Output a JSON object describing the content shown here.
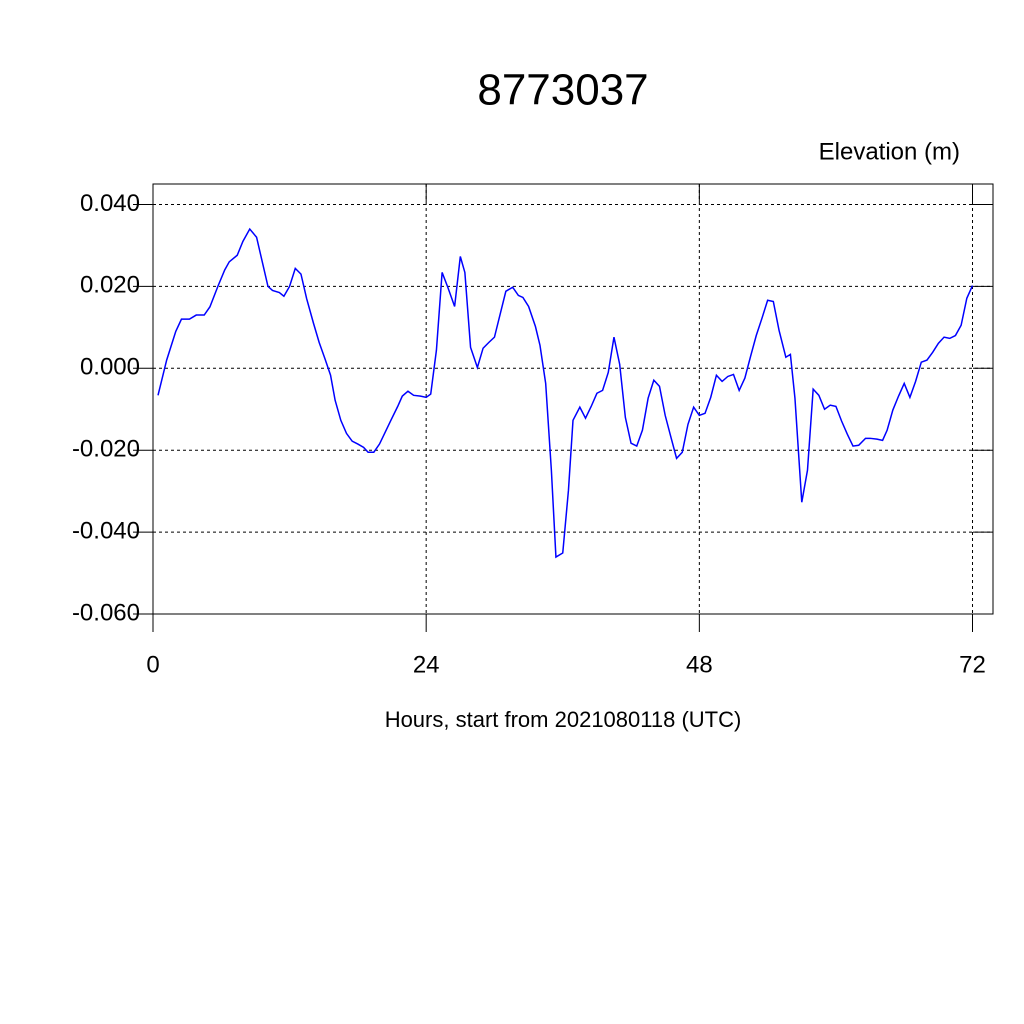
{
  "chart_data": {
    "type": "line",
    "title": "8773037",
    "subtitle": "Elevation (m)",
    "x_label": "Hours, start from 2021080118 (UTC)",
    "xlim": [
      0,
      73.8
    ],
    "xticks": [
      0,
      24,
      48,
      72
    ],
    "ylim": [
      -0.06,
      0.045
    ],
    "yticks": [
      {
        "value": -0.06,
        "label": "-0.060"
      },
      {
        "value": -0.04,
        "label": "-0.040"
      },
      {
        "value": -0.02,
        "label": "-0.020"
      },
      {
        "value": 0,
        "label": "0.000"
      },
      {
        "value": 0.02,
        "label": "0.020"
      },
      {
        "value": 0.04,
        "label": "0.040"
      }
    ],
    "grid": true,
    "x": [
      0.44,
      1.2,
      2.0,
      2.5,
      3.2,
      3.8,
      4.5,
      5,
      5.7,
      6.3,
      6.7,
      7.4,
      7.9,
      8.5,
      9.1,
      9.6,
      10.1,
      10.5,
      11.1,
      11.5,
      12,
      12.5,
      13,
      13.5,
      14.1,
      14.6,
      15.1,
      15.6,
      16,
      16.5,
      17,
      17.5,
      18,
      18.5,
      18.9,
      19.4,
      19.9,
      20.4,
      20.9,
      21.5,
      21.9,
      22.4,
      22.9,
      23.5,
      24,
      24.4,
      24.9,
      25.4,
      25.9,
      26.5,
      27,
      27.4,
      27.9,
      28.5,
      29,
      29.5,
      30,
      30.5,
      31,
      31.6,
      32.1,
      32.5,
      33,
      33.6,
      34,
      34.5,
      35,
      35.4,
      36,
      36.5,
      36.9,
      37.5,
      38,
      38.5,
      39,
      39.5,
      40,
      40.5,
      41,
      41.5,
      42,
      42.5,
      43,
      43.5,
      44,
      44.5,
      45,
      45.5,
      46,
      46.5,
      47,
      47.5,
      48,
      48.5,
      49,
      49.5,
      50,
      50.5,
      51,
      51.5,
      52,
      52.5,
      53,
      53.5,
      54,
      54.5,
      55,
      55.6,
      56,
      56.4,
      57,
      57.5,
      58,
      58.5,
      59,
      59.5,
      60,
      60.5,
      61,
      61.5,
      62,
      62.6,
      63,
      63.6,
      64.1,
      64.5,
      65,
      65.5,
      66,
      66.5,
      67,
      67.5,
      68,
      68.5,
      69,
      69.5,
      70,
      70.5,
      71,
      71.5,
      72
    ],
    "series": [
      {
        "name": "Elevation",
        "color": "#0000ff",
        "values": [
          -0.0066,
          0.002,
          0.009,
          0.012,
          0.012,
          0.013,
          0.013,
          0.015,
          0.02,
          0.024,
          0.026,
          0.0276,
          0.031,
          0.034,
          0.032,
          0.026,
          0.02,
          0.019,
          0.0185,
          0.0176,
          0.02,
          0.0244,
          0.023,
          0.017,
          0.011,
          0.0063,
          0.0024,
          -0.0017,
          -0.0078,
          -0.0127,
          -0.0159,
          -0.0178,
          -0.0185,
          -0.0193,
          -0.0205,
          -0.0205,
          -0.0185,
          -0.0156,
          -0.0127,
          -0.0093,
          -0.0068,
          -0.0056,
          -0.0066,
          -0.0068,
          -0.0071,
          -0.0063,
          0.0044,
          0.0234,
          0.0198,
          0.0151,
          0.0273,
          0.0234,
          0.0051,
          0.0002,
          0.0049,
          0.0063,
          0.0076,
          0.0132,
          0.0188,
          0.0198,
          0.0178,
          0.0173,
          0.0151,
          0.0102,
          0.0056,
          -0.0037,
          -0.0249,
          -0.0461,
          -0.0451,
          -0.0298,
          -0.0127,
          -0.0095,
          -0.0122,
          -0.0093,
          -0.0061,
          -0.0054,
          -0.001,
          0.0076,
          0.001,
          -0.012,
          -0.0183,
          -0.019,
          -0.0151,
          -0.0073,
          -0.0029,
          -0.0044,
          -0.0115,
          -0.0168,
          -0.022,
          -0.0205,
          -0.0137,
          -0.0095,
          -0.0115,
          -0.011,
          -0.0071,
          -0.0017,
          -0.0032,
          -0.002,
          -0.0015,
          -0.0054,
          -0.0024,
          0.0029,
          0.008,
          0.0122,
          0.0166,
          0.0163,
          0.0093,
          0.0027,
          0.0034,
          -0.0073,
          -0.0327,
          -0.0249,
          -0.0051,
          -0.0066,
          -0.01,
          -0.009,
          -0.0093,
          -0.0129,
          -0.0161,
          -0.019,
          -0.0188,
          -0.0171,
          -0.0171,
          -0.0173,
          -0.0176,
          -0.0151,
          -0.0102,
          -0.0068,
          -0.0037,
          -0.0071,
          -0.0032,
          0.0015,
          0.002,
          0.0039,
          0.0061,
          0.0076,
          0.0073,
          0.008,
          0.0105,
          0.0171,
          0.0202
        ]
      }
    ]
  }
}
